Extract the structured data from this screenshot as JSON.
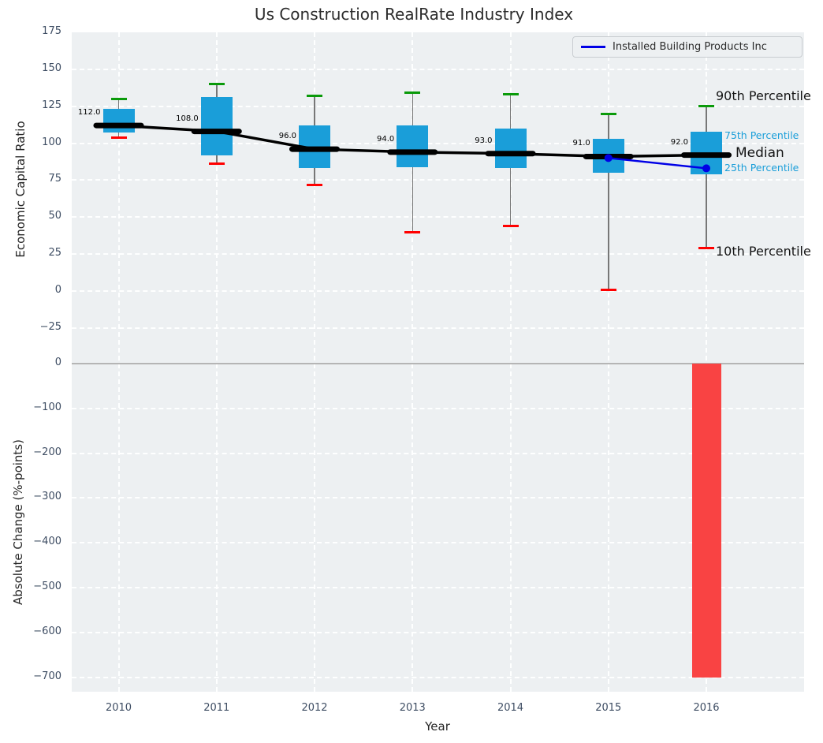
{
  "title": "Us Construction RealRate Industry Index",
  "legend": {
    "label": "Installed Building Products Inc"
  },
  "annotations": {
    "p90": "90th Percentile",
    "p75": "75th Percentile",
    "median": "Median",
    "p25": "25th Percentile",
    "p10": "10th Percentile"
  },
  "colors": {
    "plot_bg": "#edf0f2",
    "grid": "#ffffff",
    "box_fill": "#1a9ed9",
    "median_line": "#000000",
    "trend_line": "#000000",
    "company_line": "#0000e6",
    "cap_90th": "#0a9a0a",
    "cap_10th": "#ff0000",
    "whisker": "#777777",
    "bar_negative": "#f94343",
    "zero_line": "#b5b5b5",
    "tick_text": "#3e4d63",
    "label_text": "#262626",
    "percentile_text": "#1a9ed9"
  },
  "chart_data": {
    "type": "boxplot-timeseries+bar",
    "title": "Us Construction RealRate Industry Index",
    "xlabel": "Year",
    "x": [
      2010,
      2011,
      2012,
      2013,
      2014,
      2015,
      2016
    ],
    "legend_position": "upper right",
    "grid": "white dashed on light gray",
    "top_panel": {
      "ylabel": "Economic Capital Ratio",
      "ylim": [
        -40,
        175
      ],
      "yticks": [
        175,
        150,
        125,
        100,
        75,
        50,
        25,
        0,
        -25
      ],
      "percentile_annotations": [
        "90th Percentile",
        "75th Percentile",
        "Median",
        "25th Percentile",
        "10th Percentile"
      ],
      "boxes": [
        {
          "year": 2010,
          "p10": 104,
          "p25": 107,
          "median": 112,
          "p75": 123,
          "p90": 130,
          "label": "112.0"
        },
        {
          "year": 2011,
          "p10": 86,
          "p25": 92,
          "median": 108,
          "p75": 131,
          "p90": 140,
          "label": "108.0"
        },
        {
          "year": 2012,
          "p10": 72,
          "p25": 83,
          "median": 96,
          "p75": 112,
          "p90": 132,
          "label": "96.0"
        },
        {
          "year": 2013,
          "p10": 40,
          "p25": 84,
          "median": 94,
          "p75": 112,
          "p90": 134,
          "label": "94.0"
        },
        {
          "year": 2014,
          "p10": 44,
          "p25": 83,
          "median": 93,
          "p75": 110,
          "p90": 133,
          "label": "93.0"
        },
        {
          "year": 2015,
          "p10": 1,
          "p25": 80,
          "median": 91,
          "p75": 103,
          "p90": 120,
          "label": "91.0"
        },
        {
          "year": 2016,
          "p10": 29,
          "p25": 79,
          "median": 92,
          "p75": 108,
          "p90": 125,
          "label": "92.0"
        }
      ],
      "company_series": {
        "name": "Installed Building Products Inc",
        "points": [
          {
            "year": 2015,
            "value": 90
          },
          {
            "year": 2016,
            "value": 83
          }
        ]
      }
    },
    "bottom_panel": {
      "ylabel": "Absolute Change (%-points)",
      "ylim": [
        -740,
        30
      ],
      "yticks": [
        0,
        -100,
        -200,
        -300,
        -400,
        -500,
        -600,
        -700
      ],
      "bars": [
        {
          "year": 2016,
          "value": -700
        }
      ]
    }
  }
}
